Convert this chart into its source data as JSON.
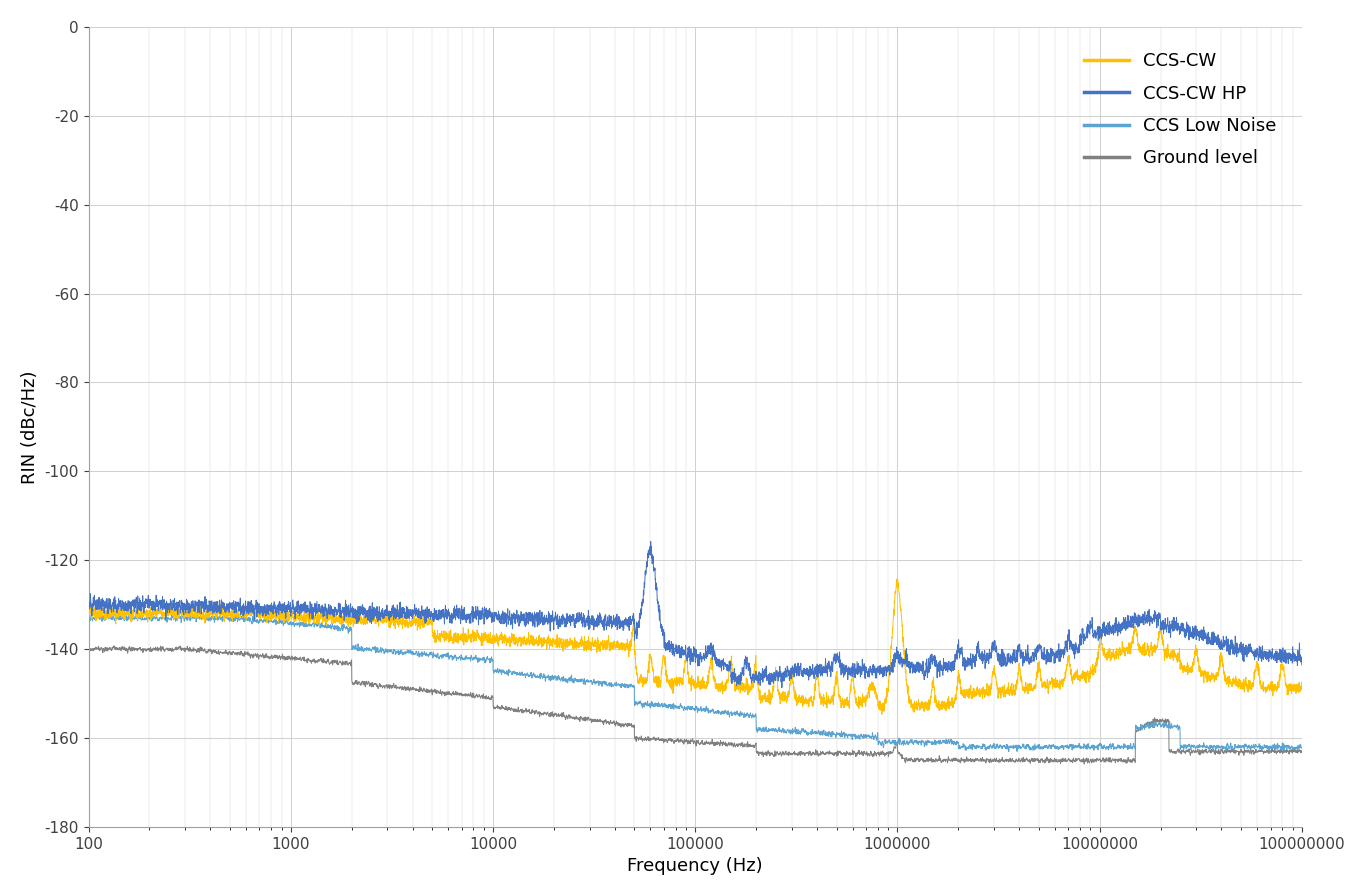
{
  "title": "",
  "xlabel": "Frequency (Hz)",
  "ylabel": "RIN (dBc/Hz)",
  "xlim_log": [
    100,
    100000000
  ],
  "ylim": [
    -180,
    0
  ],
  "yticks": [
    0,
    -20,
    -40,
    -60,
    -80,
    -100,
    -120,
    -140,
    -160,
    -180
  ],
  "colors": {
    "CCS-CW": "#FFC000",
    "CCS-CW HP": "#4472C4",
    "CCS Low Noise": "#5BA3D0",
    "Ground level": "#808080"
  },
  "legend_labels": [
    "CCS-CW",
    "CCS-CW HP",
    "CCS Low Noise",
    "Ground level"
  ],
  "background_color": "#FFFFFF",
  "grid_color": "#D0D0D0",
  "linewidth": 0.7
}
